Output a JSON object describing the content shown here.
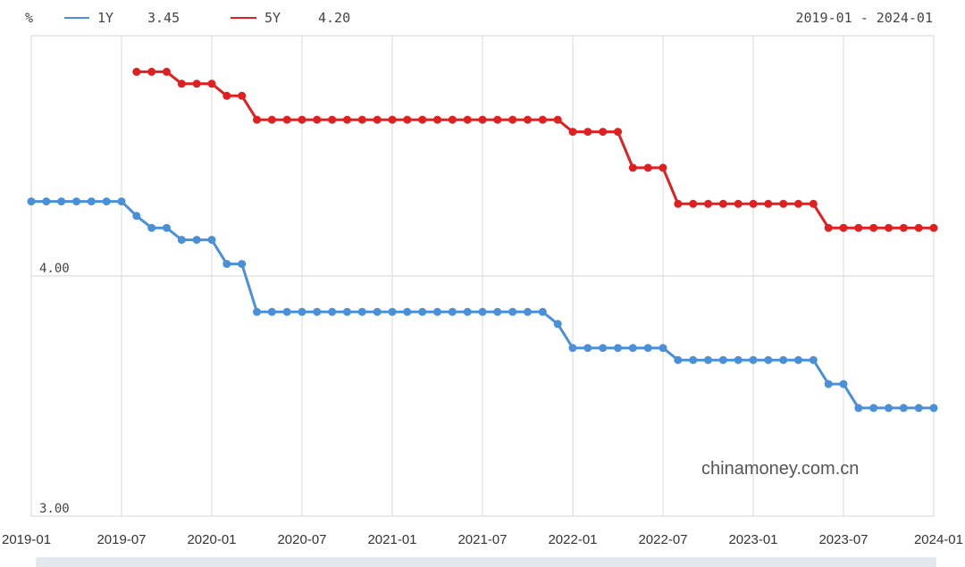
{
  "chart_data": {
    "type": "line",
    "unit": "%",
    "date_range": "2019-01 - 2024-01",
    "watermark": "chinamoney.com.cn",
    "x_labels": [
      "2019-01",
      "2019-07",
      "2020-01",
      "2020-07",
      "2021-01",
      "2021-07",
      "2022-01",
      "2022-07",
      "2023-01",
      "2023-07",
      "2024-01"
    ],
    "y_labels": [
      "4.00",
      "3.00"
    ],
    "ylim": [
      3.0,
      5.0
    ],
    "x": [
      "2019-01",
      "2019-02",
      "2019-03",
      "2019-04",
      "2019-05",
      "2019-06",
      "2019-07",
      "2019-08",
      "2019-09",
      "2019-10",
      "2019-11",
      "2019-12",
      "2020-01",
      "2020-02",
      "2020-03",
      "2020-04",
      "2020-05",
      "2020-06",
      "2020-07",
      "2020-08",
      "2020-09",
      "2020-10",
      "2020-11",
      "2020-12",
      "2021-01",
      "2021-02",
      "2021-03",
      "2021-04",
      "2021-05",
      "2021-06",
      "2021-07",
      "2021-08",
      "2021-09",
      "2021-10",
      "2021-11",
      "2021-12",
      "2022-01",
      "2022-02",
      "2022-03",
      "2022-04",
      "2022-05",
      "2022-06",
      "2022-07",
      "2022-08",
      "2022-09",
      "2022-10",
      "2022-11",
      "2022-12",
      "2023-01",
      "2023-02",
      "2023-03",
      "2023-04",
      "2023-05",
      "2023-06",
      "2023-07",
      "2023-08",
      "2023-09",
      "2023-10",
      "2023-11",
      "2023-12",
      "2024-01"
    ],
    "series": [
      {
        "name": "1Y",
        "latest": "3.45",
        "color": "#4a90d9",
        "values": [
          4.31,
          4.31,
          4.31,
          4.31,
          4.31,
          4.31,
          4.31,
          4.25,
          4.2,
          4.2,
          4.15,
          4.15,
          4.15,
          4.05,
          4.05,
          3.85,
          3.85,
          3.85,
          3.85,
          3.85,
          3.85,
          3.85,
          3.85,
          3.85,
          3.85,
          3.85,
          3.85,
          3.85,
          3.85,
          3.85,
          3.85,
          3.85,
          3.85,
          3.85,
          3.85,
          3.8,
          3.7,
          3.7,
          3.7,
          3.7,
          3.7,
          3.7,
          3.7,
          3.65,
          3.65,
          3.65,
          3.65,
          3.65,
          3.65,
          3.65,
          3.65,
          3.65,
          3.65,
          3.55,
          3.55,
          3.45,
          3.45,
          3.45,
          3.45,
          3.45,
          3.45
        ]
      },
      {
        "name": "5Y",
        "latest": "4.20",
        "color": "#e02020",
        "values": [
          null,
          null,
          null,
          null,
          null,
          null,
          null,
          4.85,
          4.85,
          4.85,
          4.8,
          4.8,
          4.8,
          4.75,
          4.75,
          4.65,
          4.65,
          4.65,
          4.65,
          4.65,
          4.65,
          4.65,
          4.65,
          4.65,
          4.65,
          4.65,
          4.65,
          4.65,
          4.65,
          4.65,
          4.65,
          4.65,
          4.65,
          4.65,
          4.65,
          4.65,
          4.6,
          4.6,
          4.6,
          4.6,
          4.45,
          4.45,
          4.45,
          4.3,
          4.3,
          4.3,
          4.3,
          4.3,
          4.3,
          4.3,
          4.3,
          4.3,
          4.3,
          4.2,
          4.2,
          4.2,
          4.2,
          4.2,
          4.2,
          4.2,
          4.2
        ]
      }
    ]
  }
}
